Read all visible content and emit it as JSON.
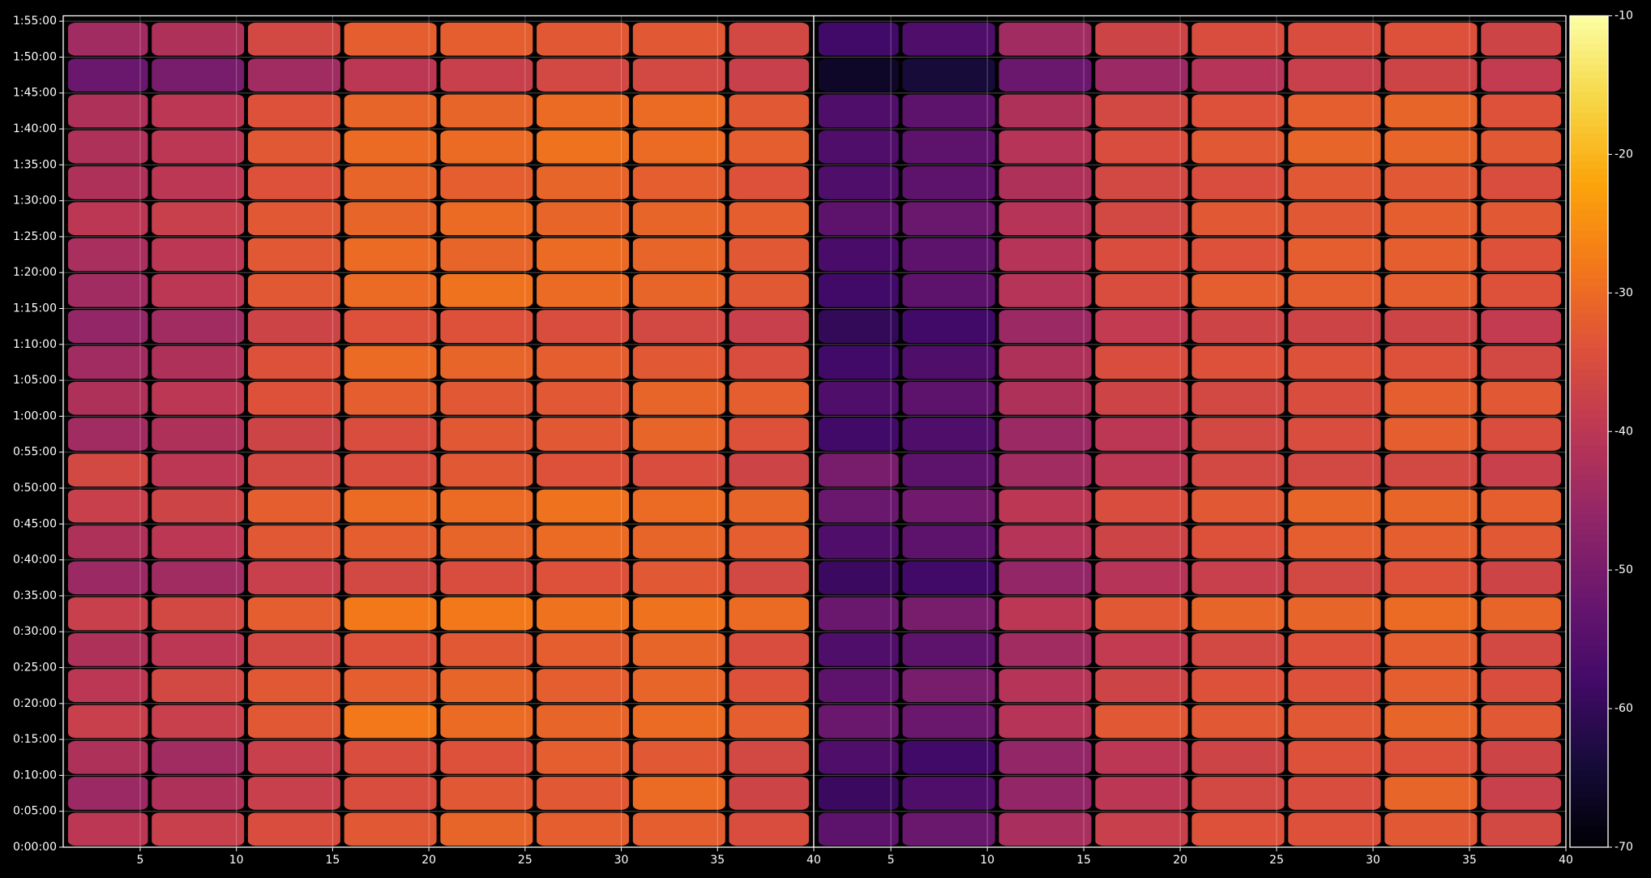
{
  "chart_data": {
    "type": "heatmap",
    "grid": true,
    "ylim": [
      0,
      6945
    ],
    "yticks": [
      {
        "value": 0,
        "label": "0:00:00"
      },
      {
        "value": 300,
        "label": "0:05:00"
      },
      {
        "value": 600,
        "label": "0:10:00"
      },
      {
        "value": 900,
        "label": "0:15:00"
      },
      {
        "value": 1200,
        "label": "0:20:00"
      },
      {
        "value": 1500,
        "label": "0:25:00"
      },
      {
        "value": 1800,
        "label": "0:30:00"
      },
      {
        "value": 2100,
        "label": "0:35:00"
      },
      {
        "value": 2400,
        "label": "0:40:00"
      },
      {
        "value": 2700,
        "label": "0:45:00"
      },
      {
        "value": 3000,
        "label": "0:50:00"
      },
      {
        "value": 3300,
        "label": "0:55:00"
      },
      {
        "value": 3600,
        "label": "1:00:00"
      },
      {
        "value": 3900,
        "label": "1:05:00"
      },
      {
        "value": 4200,
        "label": "1:10:00"
      },
      {
        "value": 4500,
        "label": "1:15:00"
      },
      {
        "value": 4800,
        "label": "1:20:00"
      },
      {
        "value": 5100,
        "label": "1:25:00"
      },
      {
        "value": 5400,
        "label": "1:30:00"
      },
      {
        "value": 5700,
        "label": "1:35:00"
      },
      {
        "value": 6000,
        "label": "1:40:00"
      },
      {
        "value": 6300,
        "label": "1:45:00"
      },
      {
        "value": 6600,
        "label": "1:50:00"
      },
      {
        "value": 6900,
        "label": "1:55:00"
      }
    ],
    "y": [
      150,
      450,
      750,
      1050,
      1350,
      1650,
      1950,
      2250,
      2550,
      2850,
      3150,
      3450,
      3750,
      4050,
      4350,
      4650,
      4950,
      5250,
      5550,
      5850,
      6150,
      6450,
      6750
    ],
    "panels": [
      {
        "xlim": [
          1,
          40
        ],
        "xticks": [
          5,
          10,
          15,
          20,
          25,
          30,
          35,
          40
        ],
        "x": [
          3,
          8,
          13,
          18,
          23,
          28,
          33,
          38
        ],
        "values": [
          [
            -40,
            -38,
            -35,
            -33,
            -31,
            -32,
            -32,
            -35
          ],
          [
            -45,
            -42,
            -38,
            -35,
            -33,
            -33,
            -30,
            -37
          ],
          [
            -42,
            -44,
            -38,
            -35,
            -34,
            -32,
            -33,
            -36
          ],
          [
            -38,
            -38,
            -33,
            -28,
            -30,
            -31,
            -30,
            -32
          ],
          [
            -40,
            -36,
            -33,
            -32,
            -31,
            -32,
            -31,
            -34
          ],
          [
            -42,
            -40,
            -36,
            -34,
            -33,
            -32,
            -31,
            -35
          ],
          [
            -38,
            -36,
            -32,
            -28,
            -28,
            -29,
            -29,
            -30
          ],
          [
            -45,
            -44,
            -38,
            -36,
            -35,
            -34,
            -33,
            -36
          ],
          [
            -42,
            -40,
            -33,
            -32,
            -31,
            -30,
            -31,
            -32
          ],
          [
            -38,
            -37,
            -32,
            -30,
            -30,
            -29,
            -30,
            -31
          ],
          [
            -36,
            -40,
            -36,
            -35,
            -33,
            -34,
            -35,
            -37
          ],
          [
            -44,
            -42,
            -37,
            -35,
            -33,
            -33,
            -31,
            -34
          ],
          [
            -42,
            -40,
            -34,
            -32,
            -33,
            -33,
            -31,
            -32
          ],
          [
            -44,
            -42,
            -34,
            -30,
            -31,
            -32,
            -33,
            -35
          ],
          [
            -46,
            -44,
            -37,
            -34,
            -34,
            -35,
            -36,
            -38
          ],
          [
            -44,
            -40,
            -33,
            -30,
            -29,
            -30,
            -31,
            -33
          ],
          [
            -43,
            -40,
            -33,
            -30,
            -31,
            -30,
            -31,
            -33
          ],
          [
            -40,
            -38,
            -33,
            -31,
            -30,
            -31,
            -31,
            -32
          ],
          [
            -42,
            -40,
            -34,
            -31,
            -32,
            -31,
            -32,
            -34
          ],
          [
            -42,
            -40,
            -33,
            -30,
            -30,
            -29,
            -30,
            -32
          ],
          [
            -42,
            -40,
            -34,
            -31,
            -31,
            -30,
            -30,
            -33
          ],
          [
            -52,
            -50,
            -44,
            -40,
            -38,
            -36,
            -36,
            -38
          ],
          [
            -44,
            -42,
            -36,
            -32,
            -32,
            -33,
            -33,
            -36
          ]
        ]
      },
      {
        "xlim": [
          1,
          40
        ],
        "xticks": [
          5,
          10,
          15,
          20,
          25,
          30,
          35,
          40
        ],
        "x": [
          3,
          8,
          13,
          18,
          23,
          28,
          33,
          38
        ],
        "values": [
          [
            -54,
            -52,
            -43,
            -38,
            -34,
            -34,
            -33,
            -36
          ],
          [
            -59,
            -56,
            -46,
            -40,
            -36,
            -35,
            -31,
            -38
          ],
          [
            -56,
            -58,
            -46,
            -40,
            -37,
            -34,
            -34,
            -37
          ],
          [
            -52,
            -52,
            -41,
            -33,
            -33,
            -33,
            -31,
            -33
          ],
          [
            -54,
            -50,
            -41,
            -37,
            -34,
            -34,
            -32,
            -35
          ],
          [
            -56,
            -54,
            -44,
            -39,
            -36,
            -34,
            -32,
            -36
          ],
          [
            -52,
            -50,
            -40,
            -33,
            -31,
            -31,
            -30,
            -31
          ],
          [
            -59,
            -58,
            -46,
            -41,
            -38,
            -36,
            -34,
            -37
          ],
          [
            -56,
            -54,
            -41,
            -37,
            -34,
            -32,
            -32,
            -33
          ],
          [
            -52,
            -51,
            -40,
            -35,
            -33,
            -31,
            -31,
            -32
          ],
          [
            -50,
            -54,
            -44,
            -40,
            -36,
            -36,
            -36,
            -38
          ],
          [
            -58,
            -56,
            -45,
            -40,
            -36,
            -35,
            -32,
            -35
          ],
          [
            -56,
            -54,
            -42,
            -37,
            -36,
            -35,
            -32,
            -33
          ],
          [
            -58,
            -56,
            -42,
            -35,
            -34,
            -34,
            -34,
            -36
          ],
          [
            -60,
            -58,
            -45,
            -39,
            -37,
            -37,
            -37,
            -39
          ],
          [
            -58,
            -54,
            -41,
            -35,
            -32,
            -32,
            -32,
            -34
          ],
          [
            -57,
            -54,
            -41,
            -35,
            -34,
            -32,
            -32,
            -34
          ],
          [
            -54,
            -52,
            -41,
            -36,
            -33,
            -33,
            -32,
            -33
          ],
          [
            -56,
            -54,
            -42,
            -36,
            -35,
            -33,
            -33,
            -35
          ],
          [
            -56,
            -54,
            -41,
            -35,
            -33,
            -31,
            -31,
            -33
          ],
          [
            -56,
            -54,
            -42,
            -36,
            -34,
            -32,
            -31,
            -34
          ],
          [
            -66,
            -64,
            -52,
            -45,
            -41,
            -38,
            -37,
            -39
          ],
          [
            -58,
            -56,
            -44,
            -37,
            -35,
            -35,
            -34,
            -37
          ]
        ]
      }
    ],
    "colorbar": {
      "colormap": "inferno",
      "lim": [
        -70,
        -10
      ],
      "ticks": [
        -70,
        -60,
        -50,
        -40,
        -30,
        -20,
        -10
      ]
    }
  }
}
